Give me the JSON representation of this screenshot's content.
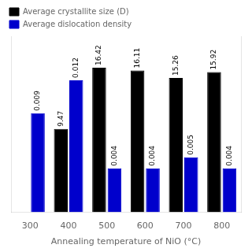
{
  "chart_data": {
    "type": "bar",
    "xlabel": "Annealing temperature of NiO (°C)",
    "categories": [
      "300",
      "400",
      "500",
      "600",
      "700",
      "800"
    ],
    "series": [
      {
        "name": "Average crystallite size (D)",
        "color": "#000000",
        "values": [
          0,
          9.47,
          16.42,
          16.11,
          15.26,
          15.92
        ],
        "value_labels": [
          null,
          "9.47",
          "16.42",
          "16.11",
          "15.26",
          "15.92"
        ]
      },
      {
        "name": "Average dislocation density",
        "color": "#0000CC",
        "axis": "y2",
        "values": [
          0.009,
          0.012,
          0.004,
          0.004,
          0.005,
          0.004
        ]
      }
    ],
    "ylim": [
      0,
      20
    ],
    "y2lim": [
      0,
      0.016
    ],
    "data_labels": true,
    "tick_labels": "x",
    "grid": false,
    "legend": "upper left"
  }
}
